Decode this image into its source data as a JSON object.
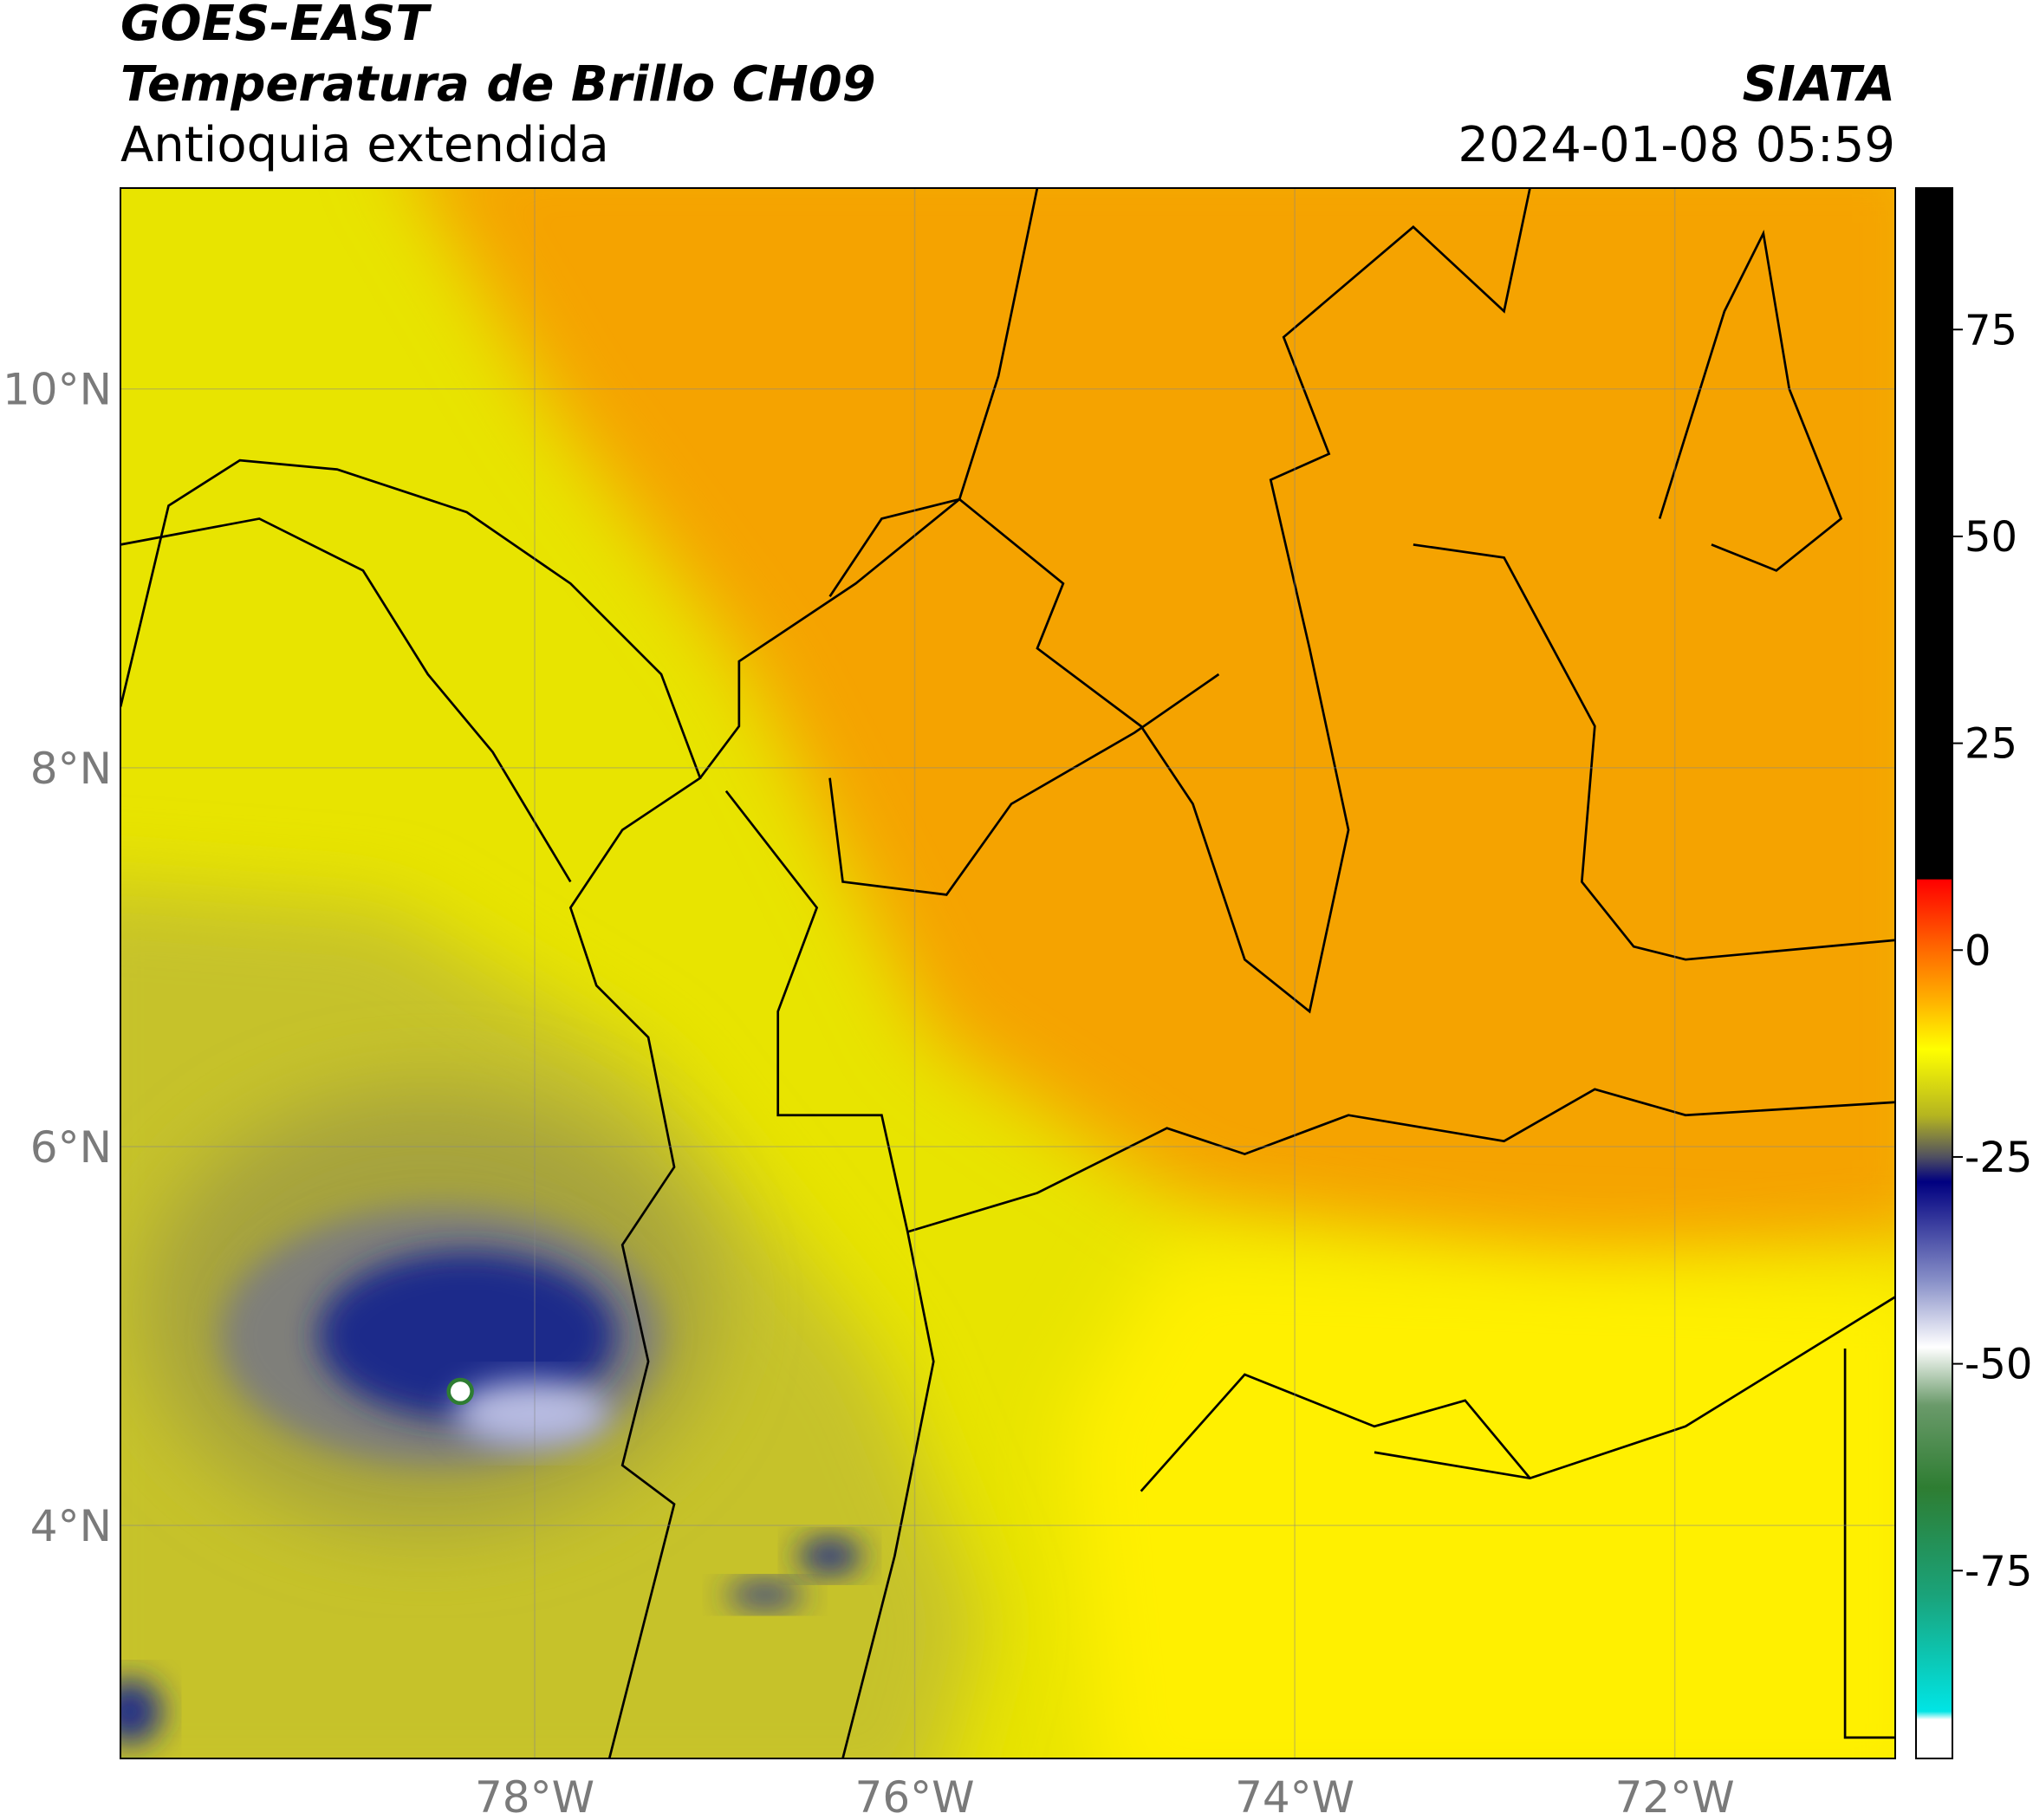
{
  "header": {
    "satellite": "GOES-EAST",
    "product": "Temperatura de Brillo CH09",
    "region": "Antioquia extendida",
    "agency": "SIATA",
    "datetime": "2024-01-08 05:59"
  },
  "map": {
    "xlim": [
      -80.18,
      -70.84
    ],
    "ylim": [
      2.77,
      11.06
    ],
    "xticks": [
      {
        "value": -78,
        "label": "78°W"
      },
      {
        "value": -76,
        "label": "76°W"
      },
      {
        "value": -74,
        "label": "74°W"
      },
      {
        "value": -72,
        "label": "72°W"
      }
    ],
    "yticks": [
      {
        "value": 4,
        "label": "4°N"
      },
      {
        "value": 6,
        "label": "6°N"
      },
      {
        "value": 8,
        "label": "8°N"
      },
      {
        "value": 10,
        "label": "10°N"
      }
    ],
    "grid": true
  },
  "colorbar": {
    "lim": [
      -97.7,
      92.1
    ],
    "ticks": [
      -75,
      -50,
      -25,
      0,
      25,
      50,
      75
    ],
    "stops": [
      {
        "value": 92.1,
        "color": "#000000"
      },
      {
        "value": 8.6,
        "color": "#000000"
      },
      {
        "value": 8.5,
        "color": "#ff0000"
      },
      {
        "value": 0,
        "color": "#ff6a00"
      },
      {
        "value": -6,
        "color": "#ffb000"
      },
      {
        "value": -12,
        "color": "#ffff00"
      },
      {
        "value": -20,
        "color": "#b5b520"
      },
      {
        "value": -25,
        "color": "#505060"
      },
      {
        "value": -28,
        "color": "#000080"
      },
      {
        "value": -40,
        "color": "#8890c8"
      },
      {
        "value": -48,
        "color": "#ffffff"
      },
      {
        "value": -55,
        "color": "#6a9a6a"
      },
      {
        "value": -65,
        "color": "#2e7d32"
      },
      {
        "value": -78,
        "color": "#1aa37a"
      },
      {
        "value": -92,
        "color": "#00e5e5"
      },
      {
        "value": -93,
        "color": "#ffffff"
      }
    ]
  }
}
